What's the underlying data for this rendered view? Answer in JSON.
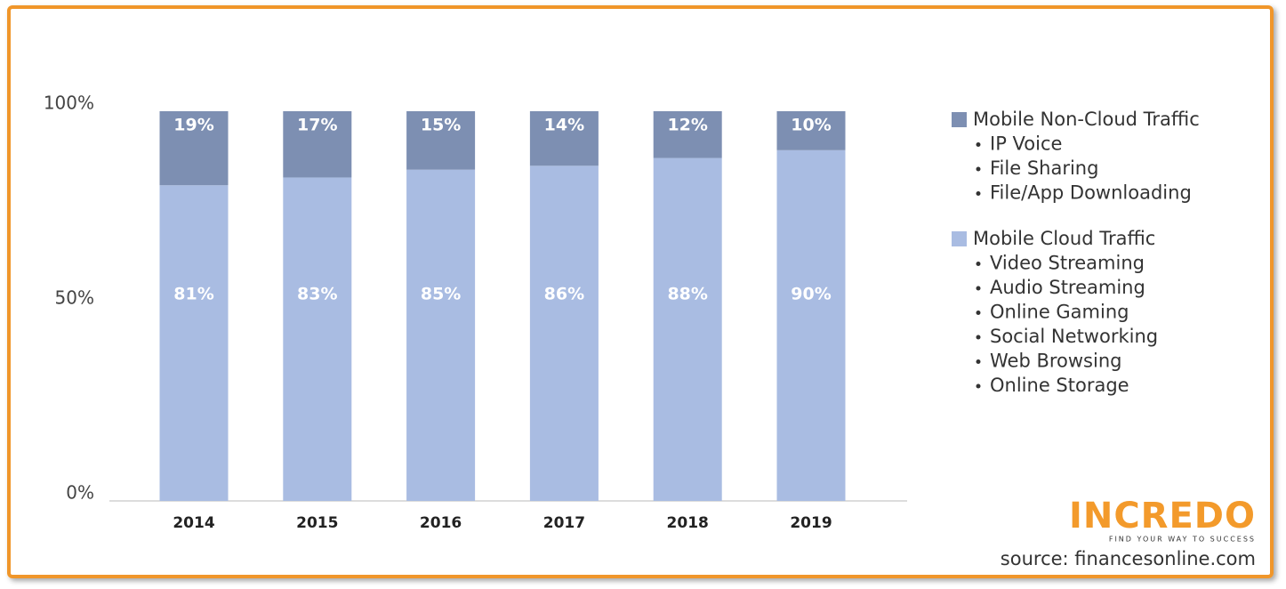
{
  "chart_data": {
    "type": "stacked_bar",
    "categories": [
      "2014",
      "2015",
      "2016",
      "2017",
      "2018",
      "2019"
    ],
    "series": [
      {
        "name": "Mobile Cloud Traffic",
        "color": "#a9bce2",
        "values": [
          81,
          83,
          85,
          86,
          88,
          90
        ],
        "value_labels": [
          "81%",
          "83%",
          "85%",
          "86%",
          "88%",
          "90%"
        ],
        "items": [
          "Video Streaming",
          "Audio Streaming",
          "Online Gaming",
          "Social Networking",
          "Web Browsing",
          "Online Storage"
        ]
      },
      {
        "name": "Mobile Non-Cloud Traffic",
        "color": "#7d8fb2",
        "values": [
          19,
          17,
          15,
          14,
          12,
          10
        ],
        "value_labels": [
          "19%",
          "17%",
          "15%",
          "14%",
          "12%",
          "10%"
        ],
        "items": [
          "IP Voice",
          "File Sharing",
          "File/App Downloading"
        ]
      }
    ],
    "ylim": [
      0,
      100
    ],
    "yticks": [
      {
        "value": 0,
        "label": "0%"
      },
      {
        "value": 50,
        "label": "50%"
      },
      {
        "value": 100,
        "label": "100%"
      }
    ],
    "legend": "right",
    "logo": "INCREDO",
    "tagline": "FIND YOUR WAY TO SUCCESS",
    "source": "source: financesonline.com"
  }
}
